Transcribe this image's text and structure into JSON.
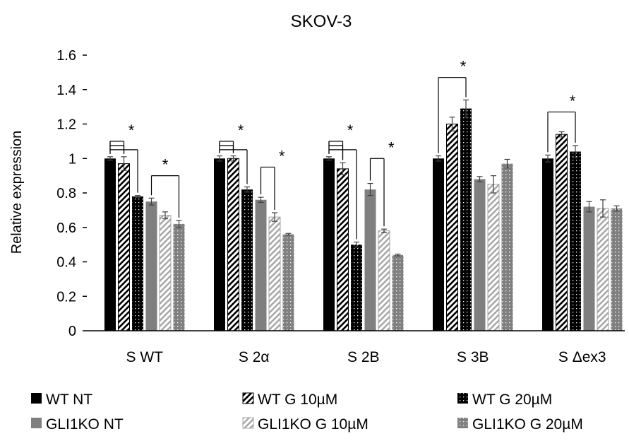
{
  "chart_data": {
    "type": "bar",
    "title": "SKOV-3",
    "ylabel": "Relative expression",
    "xlabel": "",
    "ylim": [
      0,
      1.6
    ],
    "yticks": [
      "0",
      "0.2",
      "0.4",
      "0.6",
      "0.8",
      "1",
      "1.2",
      "1.4",
      "1.6"
    ],
    "categories": [
      "S WT",
      "S 2α",
      "S 2B",
      "S 3B",
      "S Δex3"
    ],
    "series": [
      {
        "name": "WT NT",
        "values": [
          1.0,
          1.0,
          1.0,
          1.0,
          1.0
        ],
        "errors": [
          0.01,
          0.015,
          0.01,
          0.015,
          0.02
        ],
        "fill": "solid",
        "color": "#000000"
      },
      {
        "name": "WT G 10µM",
        "values": [
          0.97,
          1.0,
          0.94,
          1.2,
          1.14
        ],
        "errors": [
          0.04,
          0.015,
          0.035,
          0.04,
          0.015
        ],
        "fill": "diag-black",
        "color": "#000000"
      },
      {
        "name": "WT G 20µM",
        "values": [
          0.78,
          0.82,
          0.5,
          1.29,
          1.04
        ],
        "errors": [
          0.005,
          0.015,
          0.015,
          0.05,
          0.035
        ],
        "fill": "dots-black",
        "color": "#000000"
      },
      {
        "name": "GLI1KO NT",
        "values": [
          0.75,
          0.76,
          0.82,
          0.88,
          0.72
        ],
        "errors": [
          0.02,
          0.015,
          0.035,
          0.015,
          0.03
        ],
        "fill": "solid-gray",
        "color": "#7f7f7f"
      },
      {
        "name": "GLI1KO G 10µM",
        "values": [
          0.67,
          0.66,
          0.58,
          0.85,
          0.71
        ],
        "errors": [
          0.02,
          0.025,
          0.01,
          0.05,
          0.05
        ],
        "fill": "diag-gray",
        "color": "#a6a6a6"
      },
      {
        "name": "GLI1KO G 20µM",
        "values": [
          0.62,
          0.56,
          0.44,
          0.97,
          0.71
        ],
        "errors": [
          0.02,
          0.005,
          0.005,
          0.025,
          0.015
        ],
        "fill": "dots-gray",
        "color": "#7f7f7f"
      }
    ],
    "significance_label": "*",
    "legend_position": "bottom",
    "grid": false
  }
}
